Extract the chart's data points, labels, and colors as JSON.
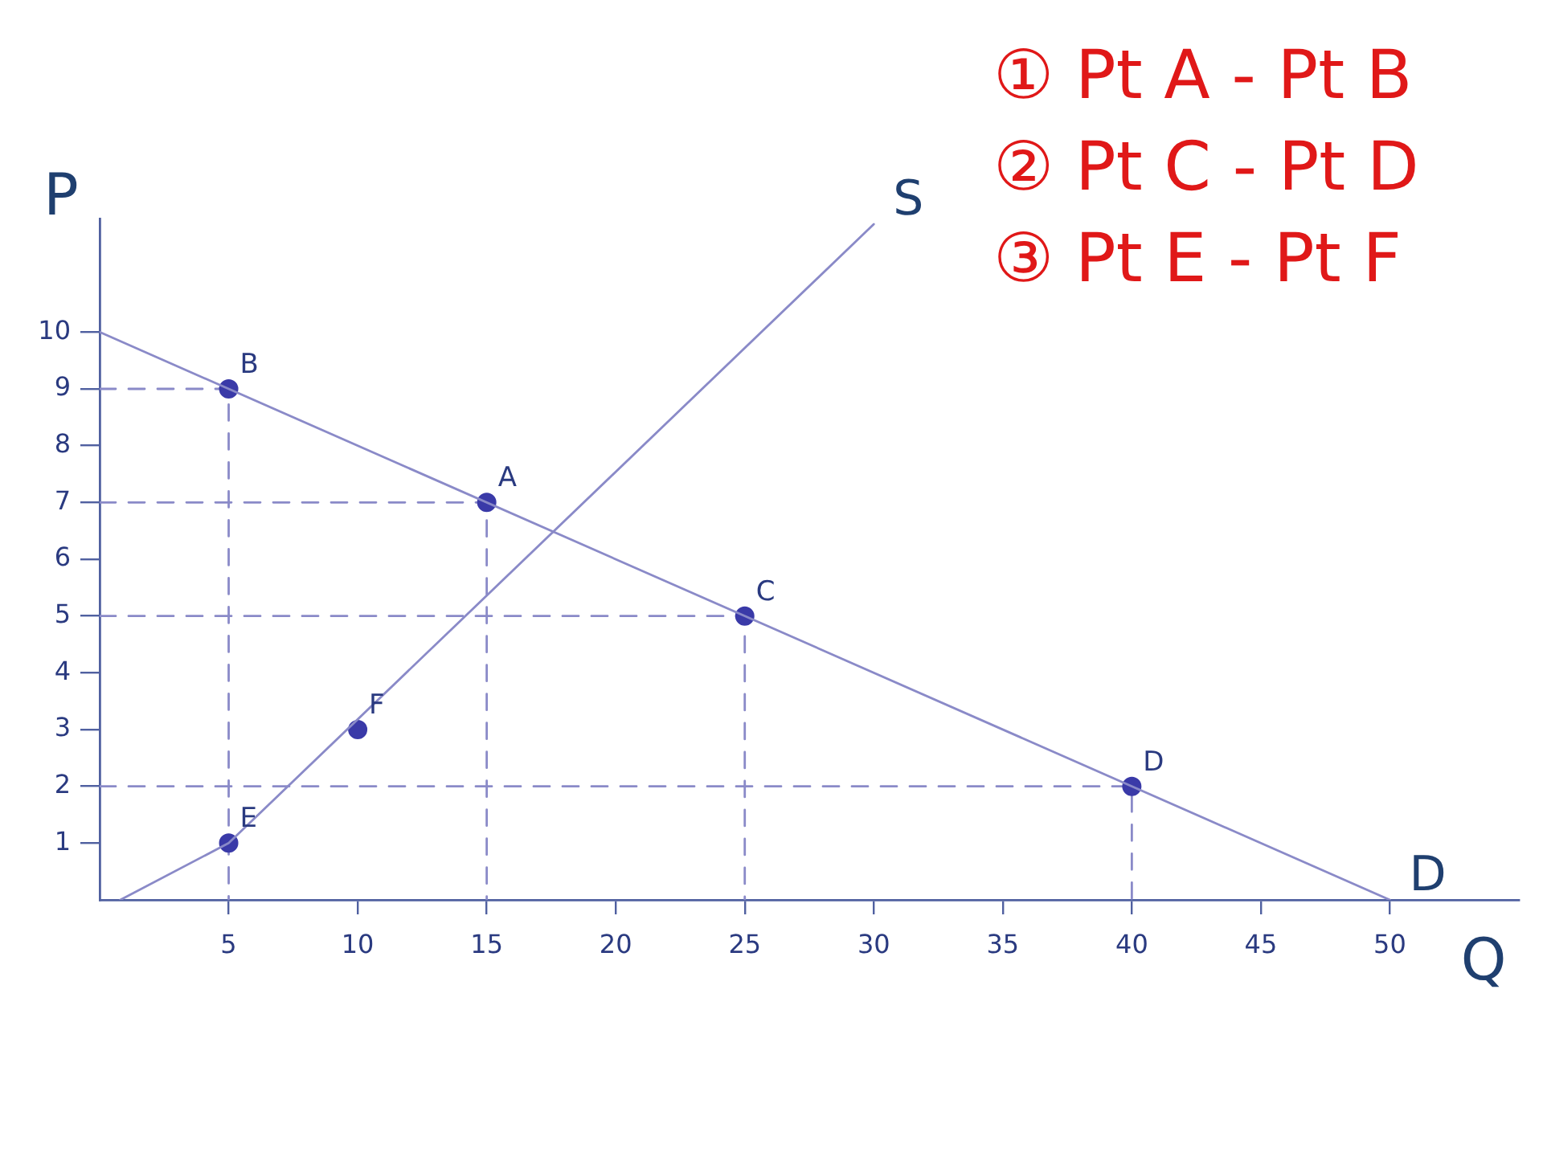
{
  "chart_data": {
    "type": "line",
    "xlabel": "Q",
    "ylabel": "P",
    "xlim": [
      0,
      55
    ],
    "ylim": [
      0,
      12
    ],
    "xticks": [
      5,
      10,
      15,
      20,
      25,
      30,
      35,
      40,
      45,
      50
    ],
    "yticks": [
      1,
      2,
      3,
      4,
      5,
      6,
      7,
      8,
      9,
      10
    ],
    "grid": false,
    "legend": false,
    "series": [
      {
        "name": "D",
        "color": "#8a8ac8",
        "x": [
          0,
          50
        ],
        "values": [
          10,
          0
        ]
      },
      {
        "name": "S",
        "color": "#8a8ac8",
        "x": [
          0.8,
          5,
          30
        ],
        "values": [
          0,
          1,
          11.9
        ]
      },
      {
        "type": "scatter",
        "marker": "circle",
        "color": "#3a3aa8",
        "x": [
          15,
          5,
          25,
          40,
          5,
          10
        ],
        "values": [
          7,
          9,
          5,
          2,
          1,
          3
        ]
      },
      {
        "line_style": "dashed",
        "color": "#8a8ac8",
        "x": [
          0,
          5,
          5
        ],
        "values": [
          9,
          9,
          0
        ]
      },
      {
        "line_style": "dashed",
        "color": "#8a8ac8",
        "x": [
          0,
          15,
          15
        ],
        "values": [
          7,
          7,
          0
        ]
      },
      {
        "line_style": "dashed",
        "color": "#8a8ac8",
        "x": [
          0,
          25,
          25
        ],
        "values": [
          5,
          5,
          0
        ]
      },
      {
        "line_style": "dashed",
        "color": "#8a8ac8",
        "x": [
          0,
          40,
          40
        ],
        "values": [
          2,
          2,
          0
        ]
      }
    ],
    "annotations": [
      "① Pt A - Pt B",
      "② Pt C - Pt D",
      "③ Pt E - Pt F",
      {
        "text": "A",
        "x": 15,
        "y": 7
      },
      {
        "text": "B",
        "x": 5,
        "y": 9
      },
      {
        "text": "C",
        "x": 25,
        "y": 5
      },
      {
        "text": "D",
        "x": 40,
        "y": 2
      },
      {
        "text": "E",
        "x": 5,
        "y": 1
      },
      {
        "text": "F",
        "x": 10,
        "y": 3
      }
    ]
  }
}
